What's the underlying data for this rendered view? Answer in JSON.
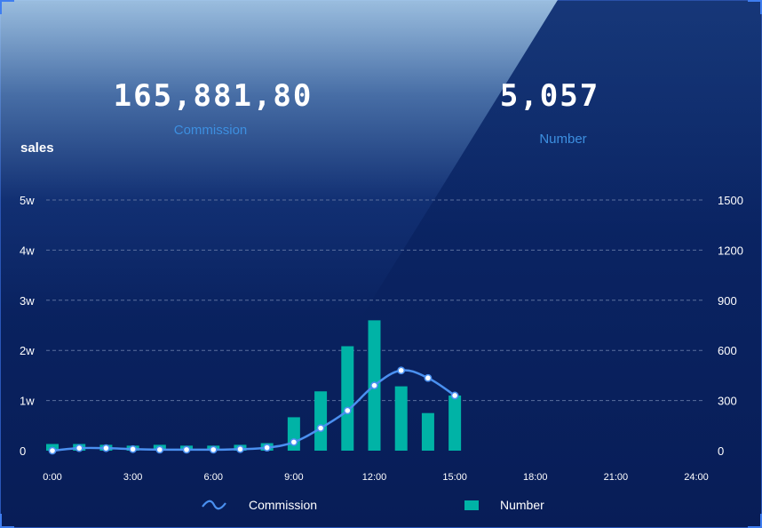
{
  "kpis": [
    {
      "value": "165,881,80",
      "label": "Commission"
    },
    {
      "value": "5,057",
      "label": "Number"
    }
  ],
  "colors": {
    "background": "#0a2463",
    "line": "#4a90f0",
    "bar": "#00b3a6",
    "gridline": "#5a6f9e",
    "kpi_label": "#3d8fe0"
  },
  "chart_data": {
    "type": "bar",
    "ylabel": "sales",
    "x_ticks": [
      "0:00",
      "3:00",
      "6:00",
      "9:00",
      "12:00",
      "15:00",
      "18:00",
      "21:00",
      "24:00"
    ],
    "x_range": [
      0,
      24
    ],
    "y_left": {
      "ticks": [
        "0",
        "1w",
        "2w",
        "3w",
        "4w",
        "5w"
      ],
      "range": [
        0,
        50000
      ]
    },
    "y_right": {
      "ticks": [
        "0",
        "300",
        "600",
        "900",
        "1200",
        "1500"
      ],
      "range": [
        0,
        1500
      ]
    },
    "grid": true,
    "legend_position": "bottom",
    "series": [
      {
        "name": "Commission",
        "type": "line",
        "axis": "left",
        "smooth": true,
        "x": [
          0,
          1,
          2,
          3,
          4,
          5,
          6,
          7,
          8,
          9,
          10,
          11,
          12,
          13,
          14,
          15
        ],
        "values": [
          0,
          500,
          500,
          300,
          200,
          200,
          200,
          300,
          600,
          1700,
          4500,
          8000,
          13000,
          16000,
          14500,
          11000
        ]
      },
      {
        "name": "Number",
        "type": "bar",
        "axis": "right",
        "x": [
          0,
          1,
          2,
          3,
          4,
          5,
          6,
          7,
          8,
          9,
          10,
          11,
          12,
          13,
          14,
          15
        ],
        "values": [
          40,
          40,
          35,
          30,
          35,
          30,
          30,
          35,
          45,
          200,
          355,
          625,
          780,
          385,
          225,
          330
        ]
      }
    ]
  }
}
